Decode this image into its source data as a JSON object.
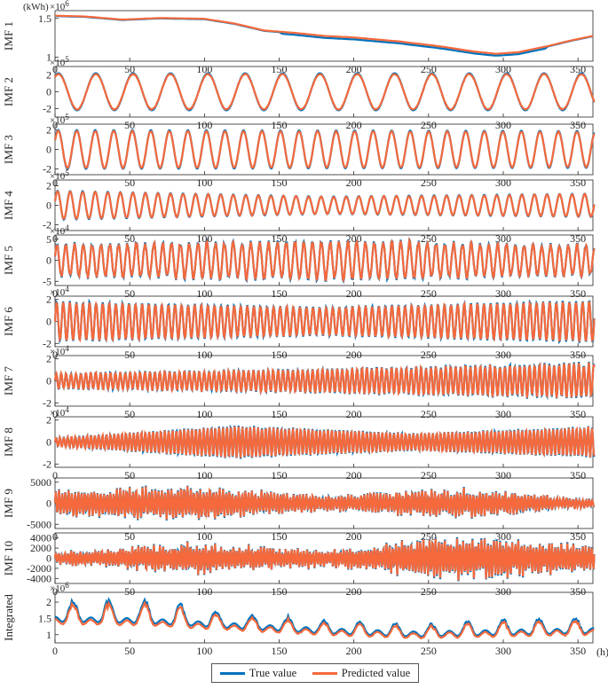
{
  "chart_data": {
    "type": "line",
    "unit_label": "(kWh)",
    "x_axis_unit": "(h)",
    "xlim": [
      0,
      360
    ],
    "xticks": [
      0,
      50,
      100,
      150,
      200,
      250,
      300,
      350
    ],
    "colors": {
      "true": "#0072BD",
      "predicted": "#F5693C"
    },
    "legend": {
      "true_label": "True value",
      "predicted_label": "Predicted value",
      "placement": "bottom-center"
    },
    "panels": [
      {
        "label": "IMF 1",
        "exponent": "6",
        "ylim": [
          0.95,
          1.6
        ],
        "yticks": [
          1,
          1.5
        ],
        "ytick_labels": [
          "1",
          "1.5"
        ],
        "trend": {
          "x": [
            0,
            20,
            45,
            70,
            100,
            120,
            140,
            160,
            180,
            200,
            230,
            260,
            280,
            295,
            310,
            330,
            345,
            360
          ],
          "y": [
            1.53,
            1.52,
            1.48,
            1.5,
            1.49,
            1.43,
            1.34,
            1.31,
            1.27,
            1.25,
            1.2,
            1.13,
            1.07,
            1.04,
            1.06,
            1.14,
            1.21,
            1.27
          ]
        }
      },
      {
        "label": "IMF 2",
        "exponent": "5",
        "ylim": [
          -3,
          3
        ],
        "yticks": [
          -2,
          0,
          2
        ],
        "ytick_labels": [
          "-2",
          "0",
          "2"
        ],
        "oscillation": {
          "period": 25.0,
          "amp": [
            2.2,
            2.2
          ],
          "phase": 1.0,
          "noise": 0
        }
      },
      {
        "label": "IMF 3",
        "exponent": "5",
        "ylim": [
          -2.6,
          2.6
        ],
        "yticks": [
          -2,
          0,
          2
        ],
        "ytick_labels": [
          "-2",
          "0",
          "2"
        ],
        "oscillation": {
          "period": 12.4,
          "amp": [
            2.0,
            1.9
          ],
          "phase": 0.5,
          "noise": 0
        }
      },
      {
        "label": "IMF 4",
        "exponent": "5",
        "ylim": [
          -2.6,
          2.6
        ],
        "yticks": [
          -2,
          0,
          2
        ],
        "ytick_labels": [
          "-2",
          "0",
          "2"
        ],
        "oscillation": {
          "period": 8.4,
          "amp": [
            1.5,
            0.9,
            1.2
          ],
          "phase": 0.3,
          "noise": 0
        }
      },
      {
        "label": "IMF 5",
        "exponent": "4",
        "ylim": [
          -6,
          6
        ],
        "yticks": [
          -5,
          0,
          5
        ],
        "ytick_labels": [
          "-5",
          "0",
          "5"
        ],
        "oscillation": {
          "period": 5.9,
          "amp": [
            3.8,
            4.6,
            3.5
          ],
          "phase": 0.2,
          "noise": 0.15
        }
      },
      {
        "label": "IMF 6",
        "exponent": "4",
        "ylim": [
          -2.3,
          2.3
        ],
        "yticks": [
          -2,
          0,
          2
        ],
        "ytick_labels": [
          "-2",
          "0",
          "2"
        ],
        "oscillation": {
          "period": 4.4,
          "amp": [
            1.8,
            1.3,
            1.9
          ],
          "phase": 0.0,
          "noise": 0.05
        }
      },
      {
        "label": "IMF 7",
        "exponent": "4",
        "ylim": [
          -2.3,
          2.3
        ],
        "yticks": [
          -2,
          0,
          2
        ],
        "ytick_labels": [
          "-2",
          "0",
          "2"
        ],
        "oscillation": {
          "period": 3.3,
          "amp": [
            0.7,
            1.1,
            1.6
          ],
          "phase": 0.0,
          "noise": 0.12
        }
      },
      {
        "label": "IMF 8",
        "exponent": "4",
        "ylim": [
          -2.3,
          2.3
        ],
        "yticks": [
          -2,
          0,
          2
        ],
        "ytick_labels": [
          "-2",
          "0",
          "2"
        ],
        "oscillation": {
          "period": 2.6,
          "amp": [
            0.4,
            1.5,
            0.8,
            1.4
          ],
          "phase": 0.0,
          "noise": 0.05
        }
      },
      {
        "label": "IMF 9",
        "exponent": "",
        "ylim": [
          -6000,
          6000
        ],
        "yticks": [
          -5000,
          0,
          5000
        ],
        "ytick_labels": [
          "-5000",
          "0",
          "5000"
        ],
        "oscillation": {
          "period": 2.15,
          "amp": [
            2500,
            3500,
            1500,
            3000,
            800
          ],
          "phase": 0.0,
          "noise": 0.35
        }
      },
      {
        "label": "IMF 10",
        "exponent": "",
        "ylim": [
          -5000,
          5000
        ],
        "yticks": [
          -4000,
          -2000,
          0,
          2000,
          4000
        ],
        "ytick_labels": [
          "-4000",
          "-2000",
          "0",
          "2000",
          "4000"
        ],
        "oscillation": {
          "period": 2.05,
          "amp": [
            1000,
            2500,
            1500,
            3500,
            2000
          ],
          "phase": 0.0,
          "noise": 0.4
        }
      },
      {
        "label": "Integrated",
        "exponent": "6",
        "ylim": [
          0.75,
          2.3
        ],
        "yticks": [
          1,
          1.5,
          2
        ],
        "ytick_labels": [
          "1",
          "1.5",
          "2"
        ],
        "integrated": {
          "base": [
            1.55,
            1.5,
            1.35,
            1.2,
            1.1,
            1.15,
            1.2
          ],
          "amp": [
            0.45,
            0.55,
            0.3,
            0.25,
            0.2,
            0.3,
            0.35
          ],
          "period": 24
        }
      }
    ]
  }
}
